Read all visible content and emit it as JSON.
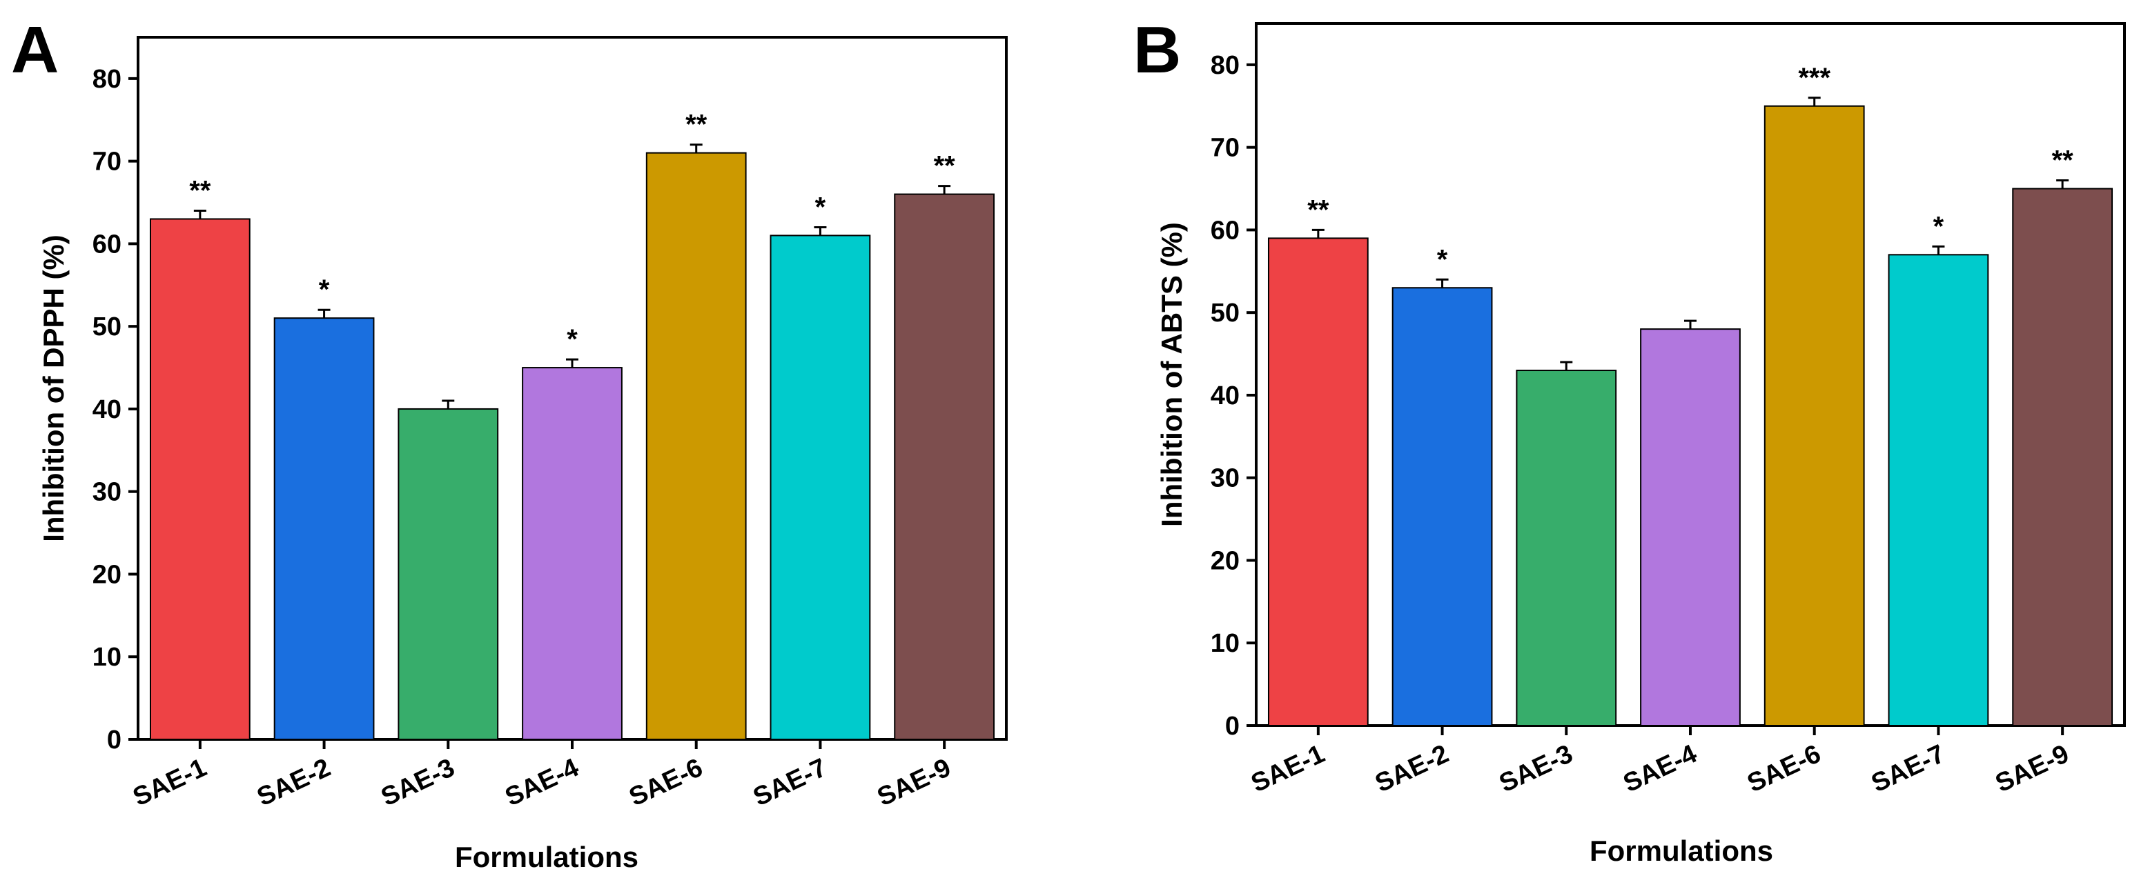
{
  "chart_data": [
    {
      "panel": "A",
      "type": "bar",
      "xlabel": "Formulations",
      "ylabel": "Inhibition of DPPH (%)",
      "ylim": [
        0,
        85
      ],
      "yticks": [
        0,
        10,
        20,
        30,
        40,
        50,
        60,
        70,
        80
      ],
      "categories": [
        "SAE-1",
        "SAE-2",
        "SAE-3",
        "SAE-4",
        "SAE-6",
        "SAE-7",
        "SAE-9"
      ],
      "values": [
        63,
        51,
        40,
        45,
        71,
        61,
        66
      ],
      "errors": [
        1,
        1,
        1,
        1,
        1,
        1,
        1
      ],
      "significance": [
        "**",
        "*",
        "",
        "*",
        "**",
        "*",
        "**"
      ],
      "colors": [
        "#EE4245",
        "#1A6FDF",
        "#37AD6B",
        "#B177DE",
        "#CC9900",
        "#00CBCC",
        "#7D4E4E"
      ]
    },
    {
      "panel": "B",
      "type": "bar",
      "xlabel": "Formulations",
      "ylabel": "Inhibition of ABTS (%)",
      "ylim": [
        0,
        85
      ],
      "yticks": [
        0,
        10,
        20,
        30,
        40,
        50,
        60,
        70,
        80
      ],
      "categories": [
        "SAE-1",
        "SAE-2",
        "SAE-3",
        "SAE-4",
        "SAE-6",
        "SAE-7",
        "SAE-9"
      ],
      "values": [
        59,
        53,
        43,
        48,
        75,
        57,
        65
      ],
      "errors": [
        1,
        1,
        1,
        1,
        1,
        1,
        1
      ],
      "significance": [
        "**",
        "*",
        "",
        "",
        "***",
        "*",
        "**"
      ],
      "colors": [
        "#EE4245",
        "#1A6FDF",
        "#37AD6B",
        "#B177DE",
        "#CC9900",
        "#00CBCC",
        "#7D4E4E"
      ]
    }
  ]
}
